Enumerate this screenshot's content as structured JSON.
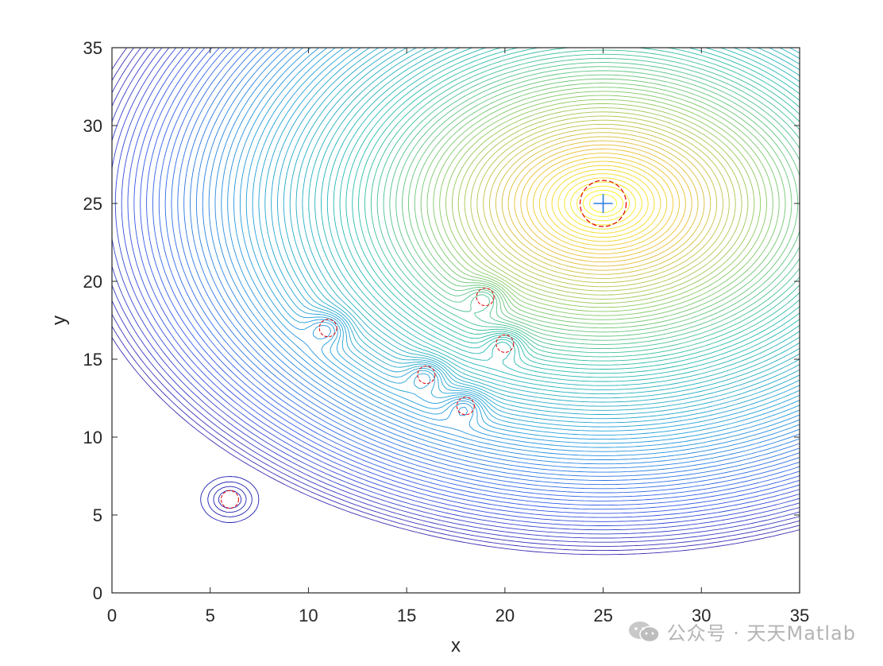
{
  "chart_data": {
    "type": "contour",
    "title": "",
    "xlabel": "x",
    "ylabel": "y",
    "xlim": [
      0,
      35
    ],
    "ylim": [
      0,
      35
    ],
    "xticks": [
      0,
      5,
      10,
      15,
      20,
      25,
      30,
      35
    ],
    "yticks": [
      0,
      5,
      10,
      15,
      20,
      25,
      30,
      35
    ],
    "grid": false,
    "colormap": "parula",
    "goal": {
      "x": 25,
      "y": 25,
      "marker": "+"
    },
    "attractive_field": {
      "center": [
        25,
        25
      ],
      "x_stretch": 1.2
    },
    "obstacles": [
      {
        "x": 6,
        "y": 6
      },
      {
        "x": 11,
        "y": 17
      },
      {
        "x": 16,
        "y": 14
      },
      {
        "x": 18,
        "y": 12
      },
      {
        "x": 19,
        "y": 19
      },
      {
        "x": 20,
        "y": 16
      }
    ],
    "ring_color": "#e00000"
  },
  "watermark": {
    "text": "公众号 · 天天Matlab"
  }
}
